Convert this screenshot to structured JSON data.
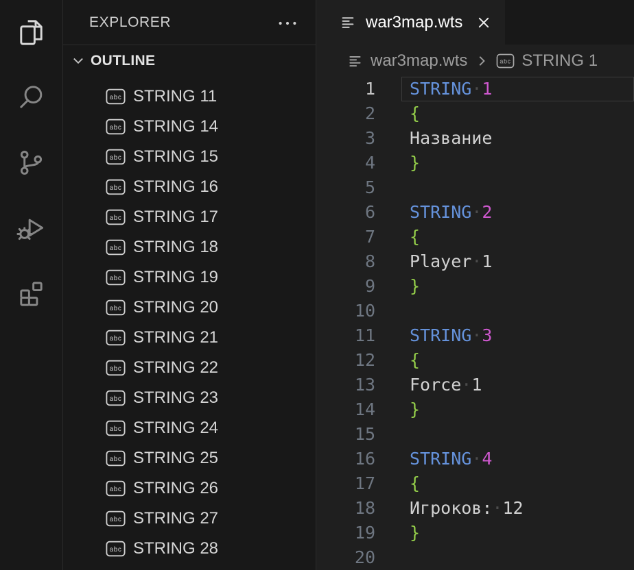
{
  "colors": {
    "keyword_blue": "#6592db",
    "number_magenta": "#ce58ce",
    "brace_green": "#94ce4a",
    "editor_background": "#1f1f1f",
    "panel_background": "#181818",
    "border": "#2b2b2b"
  },
  "icons": {
    "abc_badge_text": "abc"
  },
  "activity_bar": {
    "items": [
      {
        "name": "explorer",
        "icon": "files-icon",
        "active": true
      },
      {
        "name": "search",
        "icon": "search-icon",
        "active": false
      },
      {
        "name": "source-control",
        "icon": "source-control-icon",
        "active": false
      },
      {
        "name": "run-debug",
        "icon": "run-debug-icon",
        "active": false
      },
      {
        "name": "extensions",
        "icon": "extensions-icon",
        "active": false
      }
    ]
  },
  "explorer_panel": {
    "title": "EXPLORER",
    "more_icon": "ellipsis-icon"
  },
  "outline_panel": {
    "title": "OUTLINE",
    "collapse_icon": "chevron-down-icon",
    "item_icon": "abc-string-icon",
    "items": [
      "STRING 11",
      "STRING 14",
      "STRING 15",
      "STRING 16",
      "STRING 17",
      "STRING 18",
      "STRING 19",
      "STRING 20",
      "STRING 21",
      "STRING 22",
      "STRING 23",
      "STRING 24",
      "STRING 25",
      "STRING 26",
      "STRING 27",
      "STRING 28"
    ],
    "has_partial_next_item": true
  },
  "tab_bar": {
    "tabs": [
      {
        "title": "war3map.wts",
        "icon": "file-lines-icon",
        "close_icon": "close-icon",
        "active": true
      }
    ]
  },
  "breadcrumbs": {
    "file": {
      "icon": "file-lines-icon",
      "label": "war3map.wts"
    },
    "separator_icon": "chevron-right-icon",
    "symbol": {
      "icon": "abc-string-icon",
      "label": "STRING 1"
    }
  },
  "editor": {
    "whitespace_dot": "·",
    "active_line_number": 1,
    "lines": [
      {
        "n": "1",
        "tokens": [
          {
            "t": "kw",
            "v": "STRING"
          },
          {
            "t": "ws"
          },
          {
            "t": "num",
            "v": "1"
          }
        ]
      },
      {
        "n": "2",
        "tokens": [
          {
            "t": "brace",
            "v": "{"
          }
        ]
      },
      {
        "n": "3",
        "tokens": [
          {
            "t": "text",
            "v": "Название"
          }
        ]
      },
      {
        "n": "4",
        "tokens": [
          {
            "t": "brace",
            "v": "}"
          }
        ]
      },
      {
        "n": "5",
        "tokens": []
      },
      {
        "n": "6",
        "tokens": [
          {
            "t": "kw",
            "v": "STRING"
          },
          {
            "t": "ws"
          },
          {
            "t": "num",
            "v": "2"
          }
        ]
      },
      {
        "n": "7",
        "tokens": [
          {
            "t": "brace",
            "v": "{"
          }
        ]
      },
      {
        "n": "8",
        "tokens": [
          {
            "t": "text",
            "v": "Player"
          },
          {
            "t": "ws"
          },
          {
            "t": "text",
            "v": "1"
          }
        ]
      },
      {
        "n": "9",
        "tokens": [
          {
            "t": "brace",
            "v": "}"
          }
        ]
      },
      {
        "n": "10",
        "tokens": []
      },
      {
        "n": "11",
        "tokens": [
          {
            "t": "kw",
            "v": "STRING"
          },
          {
            "t": "ws"
          },
          {
            "t": "num",
            "v": "3"
          }
        ]
      },
      {
        "n": "12",
        "tokens": [
          {
            "t": "brace",
            "v": "{"
          }
        ]
      },
      {
        "n": "13",
        "tokens": [
          {
            "t": "text",
            "v": "Force"
          },
          {
            "t": "ws"
          },
          {
            "t": "text",
            "v": "1"
          }
        ]
      },
      {
        "n": "14",
        "tokens": [
          {
            "t": "brace",
            "v": "}"
          }
        ]
      },
      {
        "n": "15",
        "tokens": []
      },
      {
        "n": "16",
        "tokens": [
          {
            "t": "kw",
            "v": "STRING"
          },
          {
            "t": "ws"
          },
          {
            "t": "num",
            "v": "4"
          }
        ]
      },
      {
        "n": "17",
        "tokens": [
          {
            "t": "brace",
            "v": "{"
          }
        ]
      },
      {
        "n": "18",
        "tokens": [
          {
            "t": "text",
            "v": "Игроков:"
          },
          {
            "t": "ws"
          },
          {
            "t": "text",
            "v": "12"
          }
        ]
      },
      {
        "n": "19",
        "tokens": [
          {
            "t": "brace",
            "v": "}"
          }
        ]
      },
      {
        "n": "20",
        "tokens": []
      }
    ]
  }
}
